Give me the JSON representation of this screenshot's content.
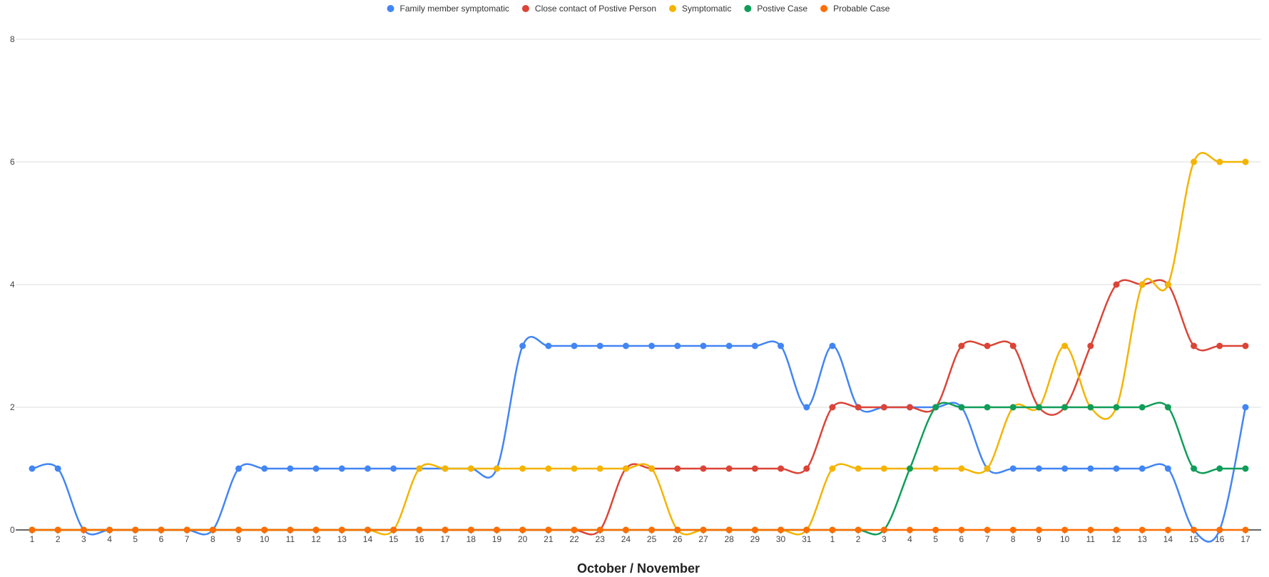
{
  "chart_data": {
    "type": "line",
    "title": "",
    "xlabel": "October / November",
    "ylabel": "",
    "ylim": [
      0,
      8
    ],
    "yticks": [
      "0",
      "2",
      "4",
      "6",
      "8"
    ],
    "grid": true,
    "legend_position": "top",
    "smooth": true,
    "categories": [
      "1",
      "2",
      "3",
      "4",
      "5",
      "6",
      "7",
      "8",
      "9",
      "10",
      "11",
      "12",
      "13",
      "14",
      "15",
      "16",
      "17",
      "18",
      "19",
      "20",
      "21",
      "22",
      "23",
      "24",
      "25",
      "26",
      "27",
      "28",
      "29",
      "30",
      "31",
      "1",
      "2",
      "3",
      "4",
      "5",
      "6",
      "7",
      "8",
      "9",
      "10",
      "11",
      "12",
      "13",
      "14",
      "15",
      "16",
      "17"
    ],
    "series": [
      {
        "name": "Family member symptomatic",
        "color": "#4285F4",
        "values": [
          1,
          1,
          0,
          0,
          0,
          0,
          0,
          0,
          1,
          1,
          1,
          1,
          1,
          1,
          1,
          1,
          1,
          1,
          1,
          3,
          3,
          3,
          3,
          3,
          3,
          3,
          3,
          3,
          3,
          3,
          2,
          3,
          2,
          2,
          2,
          2,
          2,
          1,
          1,
          1,
          1,
          1,
          1,
          1,
          1,
          0,
          0,
          2
        ]
      },
      {
        "name": "Close contact of Postive Person",
        "color": "#DB4437",
        "values": [
          0,
          0,
          0,
          0,
          0,
          0,
          0,
          0,
          0,
          0,
          0,
          0,
          0,
          0,
          0,
          0,
          0,
          0,
          0,
          0,
          0,
          0,
          0,
          1,
          1,
          1,
          1,
          1,
          1,
          1,
          1,
          2,
          2,
          2,
          2,
          2,
          3,
          3,
          3,
          2,
          2,
          3,
          4,
          4,
          4,
          3,
          3,
          3
        ]
      },
      {
        "name": "Symptomatic",
        "color": "#F4B400",
        "values": [
          0,
          0,
          0,
          0,
          0,
          0,
          0,
          0,
          0,
          0,
          0,
          0,
          0,
          0,
          0,
          1,
          1,
          1,
          1,
          1,
          1,
          1,
          1,
          1,
          1,
          0,
          0,
          0,
          0,
          0,
          0,
          1,
          1,
          1,
          1,
          1,
          1,
          1,
          2,
          2,
          3,
          2,
          2,
          4,
          4,
          6,
          6,
          6
        ]
      },
      {
        "name": "Postive Case",
        "color": "#0F9D58",
        "values": [
          0,
          0,
          0,
          0,
          0,
          0,
          0,
          0,
          0,
          0,
          0,
          0,
          0,
          0,
          0,
          0,
          0,
          0,
          0,
          0,
          0,
          0,
          0,
          0,
          0,
          0,
          0,
          0,
          0,
          0,
          0,
          0,
          0,
          0,
          1,
          2,
          2,
          2,
          2,
          2,
          2,
          2,
          2,
          2,
          2,
          1,
          1,
          1
        ]
      },
      {
        "name": "Probable Case",
        "color": "#FF6D01",
        "values": [
          0,
          0,
          0,
          0,
          0,
          0,
          0,
          0,
          0,
          0,
          0,
          0,
          0,
          0,
          0,
          0,
          0,
          0,
          0,
          0,
          0,
          0,
          0,
          0,
          0,
          0,
          0,
          0,
          0,
          0,
          0,
          0,
          0,
          0,
          0,
          0,
          0,
          0,
          0,
          0,
          0,
          0,
          0,
          0,
          0,
          0,
          0,
          0
        ]
      }
    ]
  }
}
